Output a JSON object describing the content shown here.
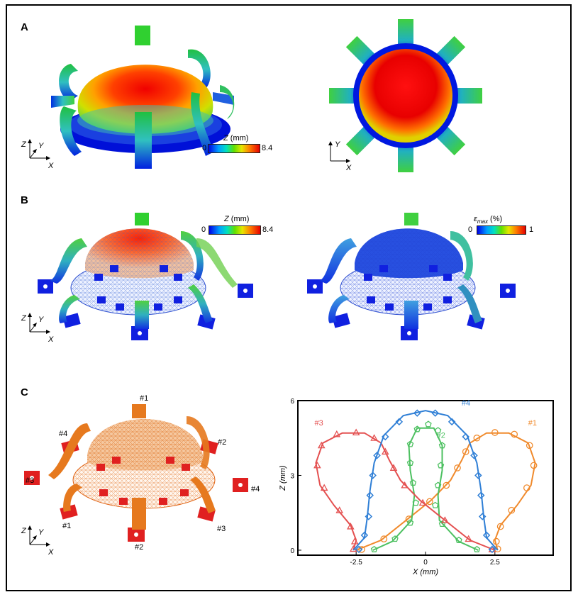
{
  "panels": {
    "a_label": "A",
    "b_label": "B",
    "c_label": "C"
  },
  "colorbars": {
    "a_z": {
      "title": "Z",
      "unit": "(mm)",
      "min": "0",
      "max": "8.4"
    },
    "b_z": {
      "title": "Z",
      "unit": "(mm)",
      "min": "0",
      "max": "8.4"
    },
    "b_strain": {
      "title": "ε",
      "subscript": "max",
      "unit": "(%)",
      "min": "0",
      "max": "1"
    }
  },
  "axes_triads": {
    "z": "Z",
    "y": "Y",
    "x": "X"
  },
  "c_labels": {
    "n1_top": "#1",
    "n2_right": "#2",
    "n3_left": "#3",
    "n4_left": "#4",
    "n1_bottom": "#1",
    "n2_bottom": "#2",
    "n3_bottom": "#3",
    "n4_right": "#4"
  },
  "colors": {
    "series1": "#f08a2c",
    "series2": "#4cc060",
    "series3": "#e45050",
    "series4": "#2f7fd6",
    "orange_mesh": "#e6791e",
    "red_pad": "#e02020"
  },
  "chart_data": {
    "type": "line",
    "xlabel": "X (mm)",
    "ylabel": "Z (mm)",
    "xlim": [
      -4.6,
      4.6
    ],
    "ylim": [
      -0.2,
      6
    ],
    "x_ticks": [
      "-2.5",
      "0",
      "2.5"
    ],
    "y_ticks": [
      "0",
      "3",
      "6"
    ],
    "series": [
      {
        "name": "#1",
        "marker": "circle",
        "line": [
          [
            -2.5,
            0
          ],
          [
            -1.6,
            0.4
          ],
          [
            -0.7,
            1.2
          ],
          [
            0.2,
            2.0
          ],
          [
            0.9,
            2.8
          ],
          [
            1.3,
            3.6
          ],
          [
            1.6,
            4.3
          ],
          [
            2.2,
            4.7
          ],
          [
            3.0,
            4.7
          ],
          [
            3.7,
            4.3
          ],
          [
            3.95,
            3.5
          ],
          [
            3.8,
            2.6
          ],
          [
            3.3,
            1.8
          ],
          [
            2.7,
            1.0
          ],
          [
            2.5,
            0.4
          ],
          [
            2.6,
            0
          ]
        ],
        "markers": [
          [
            -2.3,
            0.03
          ],
          [
            -1.5,
            0.45
          ],
          [
            -0.6,
            1.25
          ],
          [
            0.15,
            1.95
          ],
          [
            0.75,
            2.6
          ],
          [
            1.15,
            3.3
          ],
          [
            1.45,
            3.95
          ],
          [
            1.85,
            4.5
          ],
          [
            2.5,
            4.72
          ],
          [
            3.2,
            4.65
          ],
          [
            3.75,
            4.2
          ],
          [
            3.9,
            3.4
          ],
          [
            3.65,
            2.5
          ],
          [
            3.1,
            1.6
          ],
          [
            2.7,
            0.95
          ],
          [
            2.55,
            0.35
          ],
          [
            2.6,
            0.05
          ]
        ]
      },
      {
        "name": "#2",
        "marker": "pentagon",
        "line": [
          [
            -1.9,
            0
          ],
          [
            -1.2,
            0.35
          ],
          [
            -0.5,
            1.2
          ],
          [
            -0.4,
            2.2
          ],
          [
            -0.55,
            3.2
          ],
          [
            -0.6,
            4.2
          ],
          [
            -0.3,
            4.9
          ],
          [
            0.3,
            4.9
          ],
          [
            0.6,
            4.2
          ],
          [
            0.6,
            3.2
          ],
          [
            0.45,
            2.2
          ],
          [
            0.5,
            1.2
          ],
          [
            1.2,
            0.35
          ],
          [
            1.9,
            0
          ]
        ],
        "markers": [
          [
            -1.85,
            0.03
          ],
          [
            -1.1,
            0.45
          ],
          [
            -0.55,
            1.1
          ],
          [
            -0.35,
            1.9
          ],
          [
            -0.45,
            2.7
          ],
          [
            -0.55,
            3.5
          ],
          [
            -0.55,
            4.25
          ],
          [
            -0.3,
            4.85
          ],
          [
            0.1,
            5.05
          ],
          [
            0.45,
            4.8
          ],
          [
            0.6,
            4.2
          ],
          [
            0.55,
            3.4
          ],
          [
            0.45,
            2.6
          ],
          [
            0.35,
            1.8
          ],
          [
            0.6,
            1.05
          ],
          [
            1.2,
            0.4
          ],
          [
            1.85,
            0.03
          ]
        ]
      },
      {
        "name": "#3",
        "marker": "triangle",
        "line": [
          [
            2.5,
            0
          ],
          [
            1.6,
            0.4
          ],
          [
            0.7,
            1.2
          ],
          [
            -0.2,
            2.0
          ],
          [
            -0.9,
            2.8
          ],
          [
            -1.3,
            3.6
          ],
          [
            -1.6,
            4.3
          ],
          [
            -2.2,
            4.7
          ],
          [
            -3.0,
            4.7
          ],
          [
            -3.7,
            4.3
          ],
          [
            -3.95,
            3.5
          ],
          [
            -3.8,
            2.6
          ],
          [
            -3.3,
            1.8
          ],
          [
            -2.7,
            1.0
          ],
          [
            -2.5,
            0.4
          ],
          [
            -2.6,
            0
          ]
        ],
        "markers": [
          [
            2.4,
            0.03
          ],
          [
            1.55,
            0.45
          ],
          [
            0.7,
            1.2
          ],
          [
            -0.1,
            1.9
          ],
          [
            -0.75,
            2.6
          ],
          [
            -1.15,
            3.3
          ],
          [
            -1.45,
            3.95
          ],
          [
            -1.85,
            4.5
          ],
          [
            -2.5,
            4.72
          ],
          [
            -3.2,
            4.65
          ],
          [
            -3.75,
            4.2
          ],
          [
            -3.9,
            3.4
          ],
          [
            -3.65,
            2.5
          ],
          [
            -3.1,
            1.6
          ],
          [
            -2.7,
            0.95
          ],
          [
            -2.55,
            0.35
          ],
          [
            -2.6,
            0.05
          ]
        ]
      },
      {
        "name": "#4",
        "marker": "diamond",
        "line": [
          [
            -2.6,
            0
          ],
          [
            -2.2,
            0.5
          ],
          [
            -2.1,
            1.3
          ],
          [
            -2.0,
            2.4
          ],
          [
            -1.85,
            3.5
          ],
          [
            -1.5,
            4.6
          ],
          [
            -0.8,
            5.4
          ],
          [
            0,
            5.6
          ],
          [
            0.8,
            5.4
          ],
          [
            1.5,
            4.6
          ],
          [
            1.85,
            3.5
          ],
          [
            2.0,
            2.4
          ],
          [
            2.1,
            1.3
          ],
          [
            2.2,
            0.5
          ],
          [
            2.6,
            0
          ]
        ],
        "markers": [
          [
            -2.4,
            0.03
          ],
          [
            -2.2,
            0.6
          ],
          [
            -2.05,
            1.35
          ],
          [
            -2.0,
            2.2
          ],
          [
            -1.9,
            3.0
          ],
          [
            -1.75,
            3.8
          ],
          [
            -1.45,
            4.55
          ],
          [
            -0.95,
            5.15
          ],
          [
            -0.3,
            5.5
          ],
          [
            0.35,
            5.5
          ],
          [
            0.95,
            5.15
          ],
          [
            1.45,
            4.55
          ],
          [
            1.75,
            3.8
          ],
          [
            1.9,
            3.0
          ],
          [
            2.0,
            2.2
          ],
          [
            2.05,
            1.35
          ],
          [
            2.2,
            0.6
          ],
          [
            2.4,
            0.03
          ]
        ]
      }
    ]
  }
}
